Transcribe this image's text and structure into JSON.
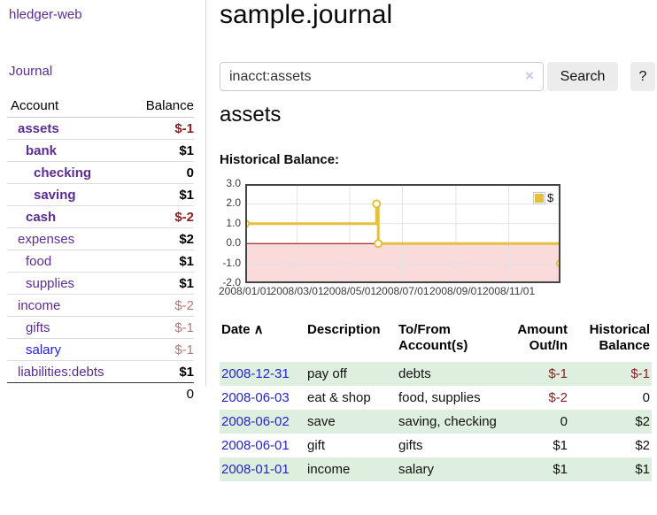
{
  "app_title": "hledger-web",
  "sidebar": {
    "journal_link": "Journal",
    "account_header": "Account",
    "balance_header": "Balance",
    "accounts": [
      {
        "name": "assets",
        "depth": 1,
        "bold": true,
        "balance": "$-1",
        "balance_style": "negstrong"
      },
      {
        "name": "bank",
        "depth": 2,
        "bold": true,
        "balance": "$1",
        "balance_style": "pos"
      },
      {
        "name": "checking",
        "depth": 3,
        "bold": true,
        "balance": "0",
        "balance_style": "pos"
      },
      {
        "name": "saving",
        "depth": 3,
        "bold": true,
        "balance": "$1",
        "balance_style": "pos"
      },
      {
        "name": "cash",
        "depth": 2,
        "bold": true,
        "balance": "$-2",
        "balance_style": "negstrong"
      },
      {
        "name": "expenses",
        "depth": 1,
        "bold": false,
        "balance": "$2",
        "balance_style": "pos"
      },
      {
        "name": "food",
        "depth": 2,
        "bold": false,
        "balance": "$1",
        "balance_style": "pos"
      },
      {
        "name": "supplies",
        "depth": 2,
        "bold": false,
        "balance": "$1",
        "balance_style": "pos"
      },
      {
        "name": "income",
        "depth": 1,
        "bold": false,
        "balance": "$-2",
        "balance_style": "negsoft"
      },
      {
        "name": "gifts",
        "depth": 2,
        "bold": false,
        "balance": "$-1",
        "balance_style": "negsoft"
      },
      {
        "name": "salary",
        "depth": 2,
        "bold": false,
        "balance": "$-1",
        "balance_style": "negsoft",
        "link_style": "blue"
      },
      {
        "name": "liabilities:debts",
        "depth": 1,
        "bold": false,
        "balance": "$1",
        "balance_style": "pos"
      }
    ],
    "total": "0"
  },
  "main": {
    "title": "sample.journal",
    "search": {
      "value": "inacct:assets",
      "clear_icon": "×",
      "search_button": "Search",
      "help_button": "?"
    },
    "account_heading": "assets",
    "chart_title": "Historical Balance:"
  },
  "chart_data": {
    "type": "line",
    "title": "Historical Balance",
    "step": true,
    "x_range": [
      "2008-01-01",
      "2008-12-31"
    ],
    "ylim": [
      -2,
      3
    ],
    "x_ticks": [
      {
        "label": "2008/01/01",
        "date": "2008-01-01"
      },
      {
        "label": "2008/03/01",
        "date": "2008-03-01"
      },
      {
        "label": "2008/05/01",
        "date": "2008-05-01"
      },
      {
        "label": "2008/07/01",
        "date": "2008-07-01"
      },
      {
        "label": "2008/09/01",
        "date": "2008-09-01"
      },
      {
        "label": "2008/11/01",
        "date": "2008-11-01"
      }
    ],
    "y_ticks": [
      {
        "label": "3.0",
        "value": 3
      },
      {
        "label": "2.0",
        "value": 2
      },
      {
        "label": "1.0",
        "value": 1
      },
      {
        "label": "0.0",
        "value": 0
      },
      {
        "label": "-1.0",
        "value": -1
      },
      {
        "label": "-2.0",
        "value": -2
      }
    ],
    "series": [
      {
        "name": "$",
        "color": "#e6bf41",
        "points": [
          {
            "date": "2008-01-01",
            "value": 1
          },
          {
            "date": "2008-06-01",
            "value": 2
          },
          {
            "date": "2008-06-03",
            "value": 0
          },
          {
            "date": "2008-12-31",
            "value": -1
          }
        ]
      }
    ],
    "legend": {
      "label": "$",
      "position": "top-right"
    },
    "colors": {
      "negative_region": "#fadada",
      "zero_line": "#8b0000",
      "grid": "#e3e3e3",
      "plot_border": "#454545"
    }
  },
  "register": {
    "headers": [
      {
        "label": "Date",
        "sort": "∧",
        "align": "left"
      },
      {
        "label": "Description",
        "align": "left"
      },
      {
        "label": "To/From Account(s)",
        "align": "left"
      },
      {
        "label": "Amount Out/In",
        "align": "right"
      },
      {
        "label": "Historical Balance",
        "align": "right"
      }
    ],
    "rows": [
      {
        "date": "2008-12-31",
        "description": "pay off",
        "accounts": "debts",
        "amount": "$-1",
        "amount_negative": true,
        "balance": "$-1",
        "balance_negative": true
      },
      {
        "date": "2008-06-03",
        "description": "eat & shop",
        "accounts": "food, supplies",
        "amount": "$-2",
        "amount_negative": true,
        "balance": "0",
        "balance_negative": false
      },
      {
        "date": "2008-06-02",
        "description": "save",
        "accounts": "saving, checking",
        "amount": "0",
        "amount_negative": false,
        "balance": "$2",
        "balance_negative": false
      },
      {
        "date": "2008-06-01",
        "description": "gift",
        "accounts": "gifts",
        "amount": "$1",
        "amount_negative": false,
        "balance": "$2",
        "balance_negative": false
      },
      {
        "date": "2008-01-01",
        "description": "income",
        "accounts": "salary",
        "amount": "$1",
        "amount_negative": false,
        "balance": "$1",
        "balance_negative": false
      }
    ]
  }
}
